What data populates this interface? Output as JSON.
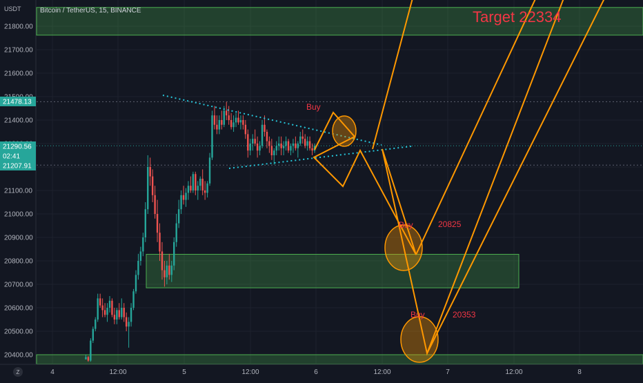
{
  "header": {
    "currency": "USDT",
    "symbol_title": "Bitcoin / TetherUS, 15, BINANCE"
  },
  "chart_data": {
    "type": "candlestick",
    "title": "Bitcoin / TetherUS, 15, BINANCE",
    "ylabel": "USDT",
    "ylim": [
      20370,
      21890
    ],
    "y_ticks": [
      20400,
      20500,
      20600,
      20700,
      20800,
      20900,
      21000,
      21100,
      21200,
      21300,
      21400,
      21500,
      21600,
      21700,
      21800
    ],
    "x_ticks": [
      "4",
      "12:00",
      "5",
      "12:00",
      "6",
      "12:00",
      "7",
      "12:00",
      "8"
    ],
    "grid": true,
    "price_badges": [
      {
        "label": "21478.13",
        "value": 21478.13,
        "color": "#26a69a"
      },
      {
        "label": "21290.56",
        "value": 21290.56,
        "color": "#26a69a"
      },
      {
        "label": "02:41",
        "value": 21255,
        "color": "#26a69a"
      },
      {
        "label": "21207.91",
        "value": 21207.91,
        "color": "#26a69a"
      }
    ],
    "horizontal_levels": [
      21478.13,
      21290.56,
      21207.91
    ],
    "zones": [
      {
        "name": "top-zone",
        "y_top": 21880,
        "y_bottom": 21762
      },
      {
        "name": "mid-zone",
        "y_top": 20828,
        "y_bottom": 20685
      },
      {
        "name": "bottom-zone",
        "y_top": 20400,
        "y_bottom": 20360
      }
    ],
    "annotations": [
      {
        "name": "target",
        "text": "Target 22334",
        "color": "#f23645",
        "price": 21810
      },
      {
        "name": "buy-1",
        "text": "Buy",
        "color": "#f23645",
        "price": 21430
      },
      {
        "name": "buy-2",
        "text": "Buy",
        "color": "#f23645",
        "price": 20870
      },
      {
        "name": "level-20825",
        "text": "20825",
        "color": "#f23645",
        "price": 20870
      },
      {
        "name": "buy-3",
        "text": "Buy",
        "color": "#f23645",
        "price": 20470
      },
      {
        "name": "level-20353",
        "text": "20353",
        "color": "#f23645",
        "price": 20470
      }
    ],
    "projection_path": [
      21380,
      21440,
      21110,
      21360,
      20825,
      21200,
      20340,
      22334
    ],
    "candles": [
      [
        20360,
        20360,
        20360,
        20360
      ],
      [
        20380,
        20400,
        20380,
        20390
      ],
      [
        20390,
        20395,
        20370,
        20375
      ],
      [
        20375,
        20470,
        20370,
        20460
      ],
      [
        20460,
        20520,
        20450,
        20510
      ],
      [
        20510,
        20560,
        20500,
        20550
      ],
      [
        20550,
        20660,
        20540,
        20640
      ],
      [
        20640,
        20660,
        20600,
        20610
      ],
      [
        20610,
        20640,
        20560,
        20590
      ],
      [
        20590,
        20620,
        20560,
        20570
      ],
      [
        20570,
        20620,
        20540,
        20600
      ],
      [
        20600,
        20650,
        20580,
        20630
      ],
      [
        20630,
        20640,
        20560,
        20570
      ],
      [
        20570,
        20600,
        20530,
        20550
      ],
      [
        20550,
        20600,
        20530,
        20590
      ],
      [
        20590,
        20620,
        20550,
        20560
      ],
      [
        20560,
        20640,
        20550,
        20600
      ],
      [
        20600,
        20620,
        20540,
        20560
      ],
      [
        20560,
        20580,
        20500,
        20520
      ],
      [
        20520,
        20560,
        20430,
        20540
      ],
      [
        20540,
        20620,
        20520,
        20600
      ],
      [
        20600,
        20680,
        20590,
        20670
      ],
      [
        20670,
        20760,
        20660,
        20740
      ],
      [
        20740,
        20830,
        20720,
        20800
      ],
      [
        20800,
        20860,
        20780,
        20840
      ],
      [
        20840,
        20920,
        20820,
        20900
      ],
      [
        20900,
        21050,
        20880,
        21020
      ],
      [
        21020,
        21250,
        21000,
        21200
      ],
      [
        21200,
        21240,
        21120,
        21160
      ],
      [
        21160,
        21190,
        21050,
        21080
      ],
      [
        21080,
        21120,
        20980,
        21000
      ],
      [
        21000,
        21060,
        20880,
        20920
      ],
      [
        20920,
        20960,
        20800,
        20840
      ],
      [
        20840,
        20880,
        20720,
        20760
      ],
      [
        20760,
        20800,
        20690,
        20730
      ],
      [
        20730,
        20800,
        20700,
        20780
      ],
      [
        20780,
        20830,
        20720,
        20740
      ],
      [
        20740,
        20800,
        20710,
        20780
      ],
      [
        20780,
        20900,
        20760,
        20880
      ],
      [
        20880,
        21000,
        20860,
        20960
      ],
      [
        20960,
        21060,
        20940,
        21020
      ],
      [
        21020,
        21100,
        21000,
        21080
      ],
      [
        21080,
        21120,
        21040,
        21060
      ],
      [
        21060,
        21110,
        21030,
        21090
      ],
      [
        21090,
        21140,
        21060,
        21120
      ],
      [
        21120,
        21160,
        21090,
        21100
      ],
      [
        21100,
        21180,
        21090,
        21170
      ],
      [
        21170,
        21180,
        21080,
        21100
      ],
      [
        21100,
        21140,
        21060,
        21120
      ],
      [
        21120,
        21160,
        21100,
        21150
      ],
      [
        21150,
        21190,
        21080,
        21100
      ],
      [
        21100,
        21140,
        21060,
        21090
      ],
      [
        21090,
        21140,
        21070,
        21130
      ],
      [
        21130,
        21260,
        21120,
        21240
      ],
      [
        21240,
        21440,
        21230,
        21420
      ],
      [
        21420,
        21460,
        21360,
        21380
      ],
      [
        21380,
        21420,
        21340,
        21360
      ],
      [
        21360,
        21420,
        21340,
        21400
      ],
      [
        21400,
        21440,
        21360,
        21380
      ],
      [
        21380,
        21460,
        21370,
        21440
      ],
      [
        21440,
        21478,
        21400,
        21420
      ],
      [
        21420,
        21460,
        21380,
        21400
      ],
      [
        21400,
        21430,
        21360,
        21370
      ],
      [
        21370,
        21420,
        21350,
        21390
      ],
      [
        21390,
        21430,
        21370,
        21410
      ],
      [
        21410,
        21440,
        21380,
        21390
      ],
      [
        21390,
        21420,
        21360,
        21400
      ],
      [
        21400,
        21420,
        21360,
        21380
      ],
      [
        21380,
        21400,
        21320,
        21340
      ],
      [
        21340,
        21360,
        21240,
        21270
      ],
      [
        21270,
        21320,
        21250,
        21300
      ],
      [
        21300,
        21340,
        21270,
        21320
      ],
      [
        21320,
        21360,
        21290,
        21300
      ],
      [
        21300,
        21330,
        21240,
        21270
      ],
      [
        21270,
        21310,
        21250,
        21290
      ],
      [
        21290,
        21400,
        21280,
        21380
      ],
      [
        21380,
        21420,
        21330,
        21350
      ],
      [
        21350,
        21360,
        21280,
        21310
      ],
      [
        21310,
        21330,
        21260,
        21290
      ],
      [
        21290,
        21320,
        21230,
        21250
      ],
      [
        21250,
        21280,
        21210,
        21270
      ],
      [
        21270,
        21310,
        21250,
        21290
      ],
      [
        21290,
        21330,
        21270,
        21300
      ],
      [
        21300,
        21330,
        21250,
        21280
      ],
      [
        21280,
        21310,
        21250,
        21290
      ],
      [
        21290,
        21330,
        21270,
        21310
      ],
      [
        21310,
        21320,
        21260,
        21270
      ],
      [
        21270,
        21300,
        21250,
        21290
      ],
      [
        21290,
        21320,
        21260,
        21300
      ],
      [
        21300,
        21330,
        21270,
        21280
      ],
      [
        21280,
        21310,
        21240,
        21300
      ],
      [
        21300,
        21350,
        21290,
        21330
      ],
      [
        21330,
        21360,
        21300,
        21320
      ],
      [
        21320,
        21340,
        21280,
        21290
      ],
      [
        21290,
        21330,
        21270,
        21310
      ],
      [
        21310,
        21330,
        21270,
        21280
      ],
      [
        21280,
        21300,
        21250,
        21270
      ],
      [
        21270,
        21300,
        21260,
        21290
      ]
    ]
  }
}
